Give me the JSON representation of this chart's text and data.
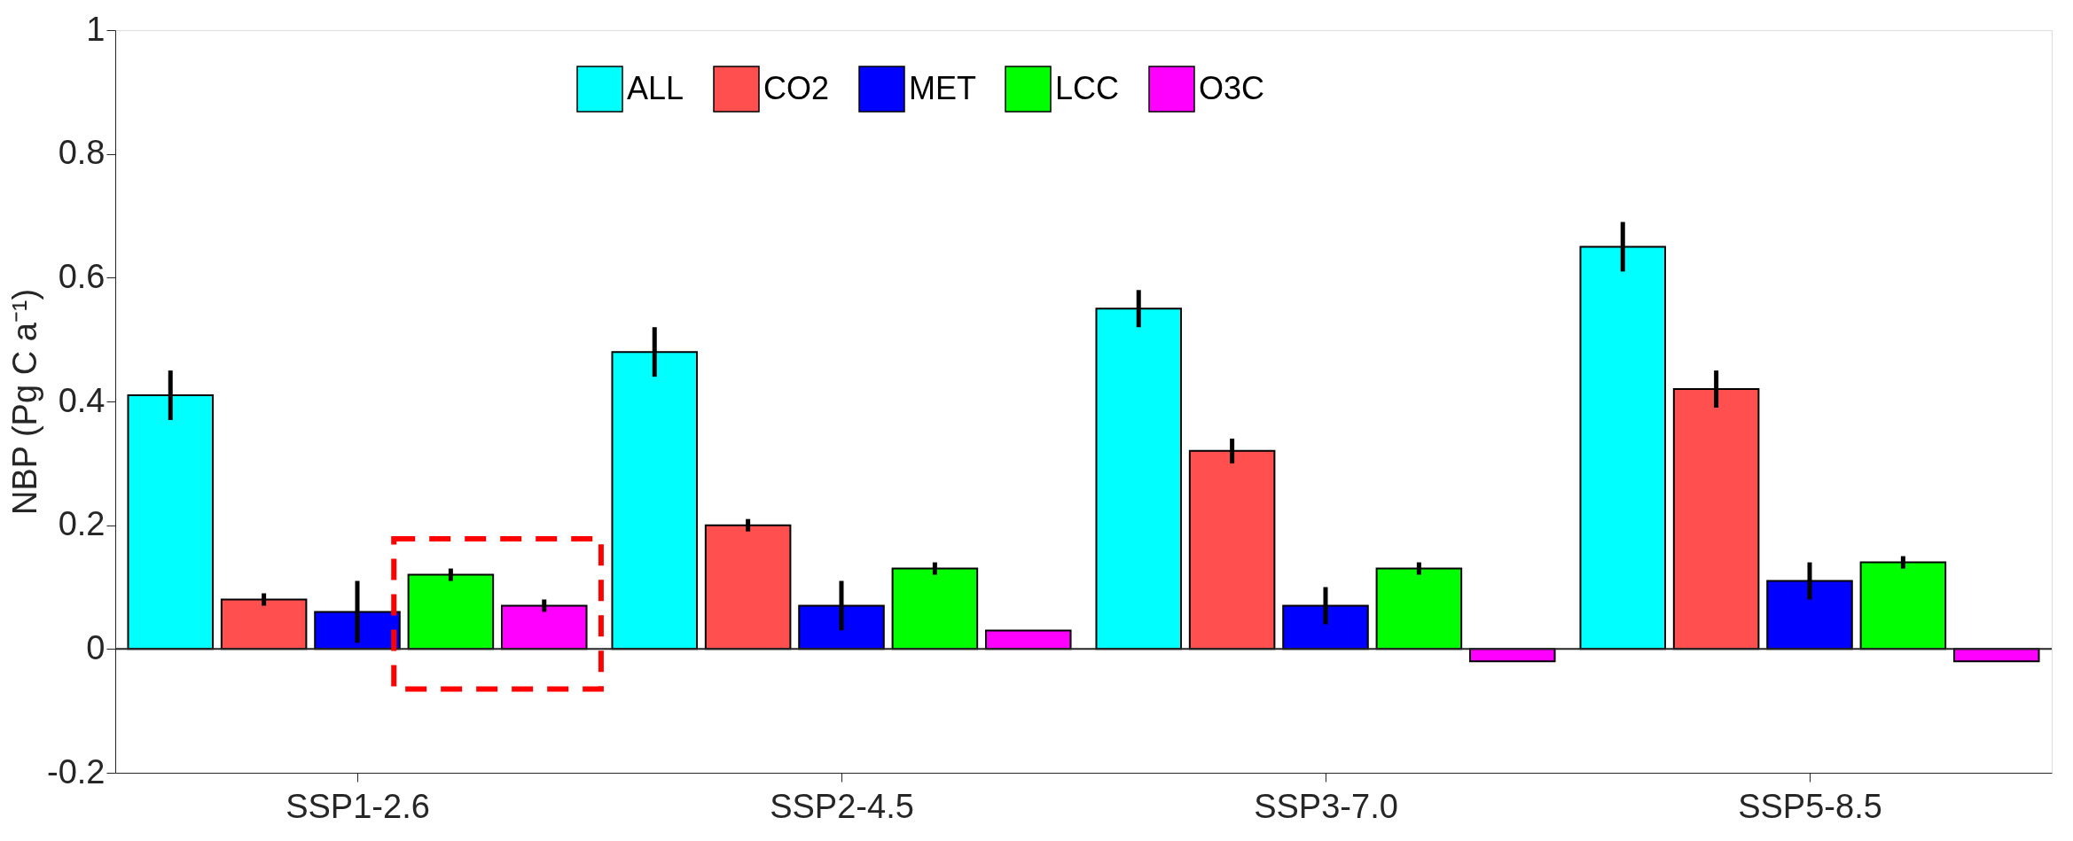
{
  "chart_data": {
    "type": "bar",
    "ylabel": "NBP (Pg C a⁻¹)",
    "categories": [
      "SSP1-2.6",
      "SSP2-4.5",
      "SSP3-7.0",
      "SSP5-8.5"
    ],
    "series": [
      {
        "name": "ALL",
        "color": "#00ffff",
        "values": [
          0.41,
          0.48,
          0.55,
          0.65
        ],
        "errors": [
          0.04,
          0.04,
          0.03,
          0.04
        ]
      },
      {
        "name": "CO2",
        "color": "#ff4f4f",
        "values": [
          0.08,
          0.2,
          0.32,
          0.42
        ],
        "errors": [
          0.01,
          0.01,
          0.02,
          0.03
        ]
      },
      {
        "name": "MET",
        "color": "#0000ff",
        "values": [
          0.06,
          0.07,
          0.07,
          0.11
        ],
        "errors": [
          0.05,
          0.04,
          0.03,
          0.03
        ]
      },
      {
        "name": "LCC",
        "color": "#00ff00",
        "values": [
          0.12,
          0.13,
          0.13,
          0.14
        ],
        "errors": [
          0.01,
          0.01,
          0.01,
          0.01
        ]
      },
      {
        "name": "O3C",
        "color": "#ff00ff",
        "values": [
          0.07,
          0.03,
          -0.02,
          -0.02
        ],
        "errors": [
          0.01,
          null,
          null,
          null
        ]
      }
    ],
    "ylim": [
      -0.2,
      1
    ],
    "yticks": [
      -0.2,
      0,
      0.2,
      0.4,
      0.6,
      0.8,
      1
    ],
    "ref_lines": [
      {
        "axis": "y",
        "value": 0
      }
    ],
    "grid": false,
    "legend": "top"
  }
}
